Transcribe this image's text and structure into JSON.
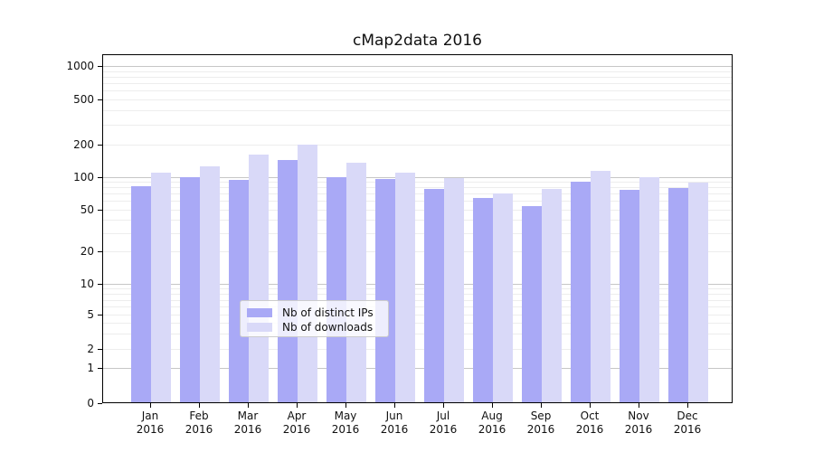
{
  "chart_data": {
    "type": "bar",
    "title": "cMap2data 2016",
    "x_axis": {
      "months": [
        "Jan",
        "Feb",
        "Mar",
        "Apr",
        "May",
        "Jun",
        "Jul",
        "Aug",
        "Sep",
        "Oct",
        "Nov",
        "Dec"
      ],
      "year": "2016"
    },
    "y_axis": {
      "scale": "symlog",
      "ticks": [
        0,
        1,
        2,
        5,
        10,
        20,
        50,
        100,
        200,
        500,
        1000
      ],
      "ylim": [
        0,
        1300
      ]
    },
    "series": [
      {
        "name": "Nb of distinct IPs",
        "color": "#a9a9f6",
        "values": [
          82,
          99,
          94,
          143,
          99,
          95,
          78,
          64,
          54,
          90,
          76,
          79
        ]
      },
      {
        "name": "Nb of downloads",
        "color": "#d9d9f8",
        "values": [
          110,
          126,
          161,
          201,
          136,
          110,
          97,
          70,
          77,
          115,
          99,
          88
        ]
      }
    ],
    "legend": {
      "entries": [
        "Nb of distinct IPs",
        "Nb of downloads"
      ],
      "position": "inside-bottom-center"
    },
    "grid": true
  },
  "colors": {
    "background": "#ffffff",
    "bar_distinct_ips": "#a9a9f6",
    "bar_downloads": "#d9d9f8",
    "grid_major": "#c6c6c6",
    "grid_minor": "#ededed",
    "axis_frame": "#000000",
    "legend_border": "#cccccc"
  }
}
